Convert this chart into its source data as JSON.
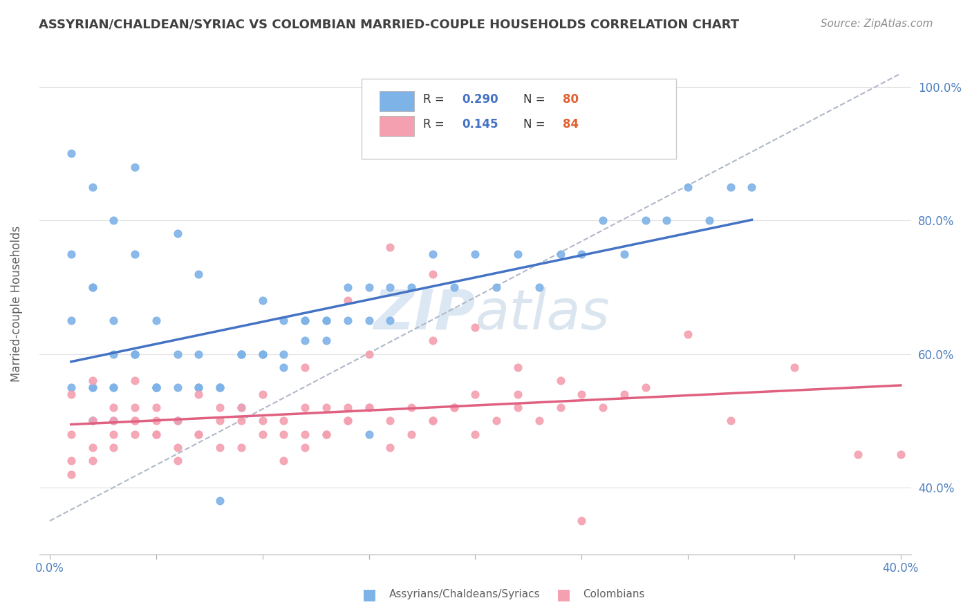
{
  "title": "ASSYRIAN/CHALDEAN/SYRIAC VS COLOMBIAN MARRIED-COUPLE HOUSEHOLDS CORRELATION CHART",
  "source_text": "Source: ZipAtlas.com",
  "ylabel": "Married-couple Households",
  "xlim": [
    0.0,
    0.4
  ],
  "ylim": [
    0.3,
    1.05
  ],
  "blue_R": 0.29,
  "blue_N": 80,
  "pink_R": 0.145,
  "pink_N": 84,
  "blue_color": "#7eb3e8",
  "pink_color": "#f4a0b0",
  "blue_line_color": "#4472c4",
  "pink_line_color": "#e06080",
  "dashed_line_color": "#b0b8c8",
  "grid_color": "#e0e0e0",
  "title_color": "#404040",
  "axis_label_color": "#606060",
  "tick_color": "#5080c0",
  "legend_R_color": "#4472c4",
  "legend_N_color": "#e06030",
  "blue_scatter_x": [
    0.02,
    0.03,
    0.01,
    0.02,
    0.04,
    0.03,
    0.02,
    0.01,
    0.05,
    0.04,
    0.03,
    0.02,
    0.01,
    0.03,
    0.02,
    0.04,
    0.05,
    0.03,
    0.02,
    0.01,
    0.06,
    0.05,
    0.04,
    0.03,
    0.02,
    0.07,
    0.06,
    0.05,
    0.08,
    0.07,
    0.06,
    0.05,
    0.09,
    0.08,
    0.07,
    0.1,
    0.09,
    0.08,
    0.11,
    0.1,
    0.09,
    0.12,
    0.11,
    0.13,
    0.12,
    0.14,
    0.13,
    0.15,
    0.14,
    0.16,
    0.15,
    0.17,
    0.16,
    0.18,
    0.19,
    0.2,
    0.21,
    0.22,
    0.23,
    0.24,
    0.25,
    0.26,
    0.27,
    0.28,
    0.29,
    0.3,
    0.31,
    0.32,
    0.33,
    0.15,
    0.08,
    0.04,
    0.06,
    0.07,
    0.09,
    0.11,
    0.13,
    0.15,
    0.1,
    0.12
  ],
  "blue_scatter_y": [
    0.55,
    0.6,
    0.65,
    0.7,
    0.75,
    0.8,
    0.85,
    0.9,
    0.55,
    0.6,
    0.65,
    0.7,
    0.75,
    0.5,
    0.55,
    0.6,
    0.65,
    0.55,
    0.5,
    0.55,
    0.5,
    0.55,
    0.6,
    0.55,
    0.5,
    0.55,
    0.6,
    0.55,
    0.55,
    0.6,
    0.55,
    0.55,
    0.6,
    0.55,
    0.55,
    0.6,
    0.6,
    0.55,
    0.6,
    0.6,
    0.6,
    0.65,
    0.65,
    0.65,
    0.65,
    0.7,
    0.65,
    0.7,
    0.65,
    0.7,
    0.65,
    0.7,
    0.65,
    0.75,
    0.7,
    0.75,
    0.7,
    0.75,
    0.7,
    0.75,
    0.75,
    0.8,
    0.75,
    0.8,
    0.8,
    0.85,
    0.8,
    0.85,
    0.85,
    0.95,
    0.38,
    0.88,
    0.78,
    0.72,
    0.52,
    0.58,
    0.62,
    0.48,
    0.68,
    0.62
  ],
  "pink_scatter_x": [
    0.01,
    0.02,
    0.03,
    0.04,
    0.05,
    0.01,
    0.02,
    0.03,
    0.04,
    0.05,
    0.01,
    0.02,
    0.03,
    0.04,
    0.05,
    0.01,
    0.02,
    0.03,
    0.04,
    0.05,
    0.06,
    0.07,
    0.08,
    0.09,
    0.1,
    0.06,
    0.07,
    0.08,
    0.09,
    0.1,
    0.11,
    0.12,
    0.13,
    0.14,
    0.15,
    0.11,
    0.12,
    0.13,
    0.14,
    0.15,
    0.16,
    0.17,
    0.18,
    0.19,
    0.2,
    0.21,
    0.22,
    0.23,
    0.24,
    0.25,
    0.26,
    0.27,
    0.16,
    0.17,
    0.18,
    0.19,
    0.2,
    0.06,
    0.08,
    0.1,
    0.12,
    0.14,
    0.04,
    0.07,
    0.09,
    0.11,
    0.13,
    0.22,
    0.24,
    0.15,
    0.18,
    0.2,
    0.3,
    0.35,
    0.38,
    0.32,
    0.28,
    0.25,
    0.4,
    0.22,
    0.18,
    0.16,
    0.14,
    0.12
  ],
  "pink_scatter_y": [
    0.48,
    0.5,
    0.52,
    0.5,
    0.48,
    0.44,
    0.46,
    0.48,
    0.5,
    0.52,
    0.42,
    0.44,
    0.46,
    0.48,
    0.5,
    0.54,
    0.56,
    0.5,
    0.52,
    0.48,
    0.5,
    0.48,
    0.52,
    0.5,
    0.54,
    0.46,
    0.48,
    0.5,
    0.52,
    0.48,
    0.5,
    0.52,
    0.48,
    0.5,
    0.52,
    0.44,
    0.46,
    0.48,
    0.5,
    0.52,
    0.5,
    0.52,
    0.5,
    0.52,
    0.48,
    0.5,
    0.52,
    0.5,
    0.52,
    0.54,
    0.52,
    0.54,
    0.46,
    0.48,
    0.5,
    0.52,
    0.54,
    0.44,
    0.46,
    0.5,
    0.48,
    0.52,
    0.56,
    0.54,
    0.46,
    0.48,
    0.52,
    0.54,
    0.56,
    0.6,
    0.62,
    0.64,
    0.63,
    0.58,
    0.45,
    0.5,
    0.55,
    0.35,
    0.45,
    0.58,
    0.72,
    0.76,
    0.68,
    0.58
  ]
}
